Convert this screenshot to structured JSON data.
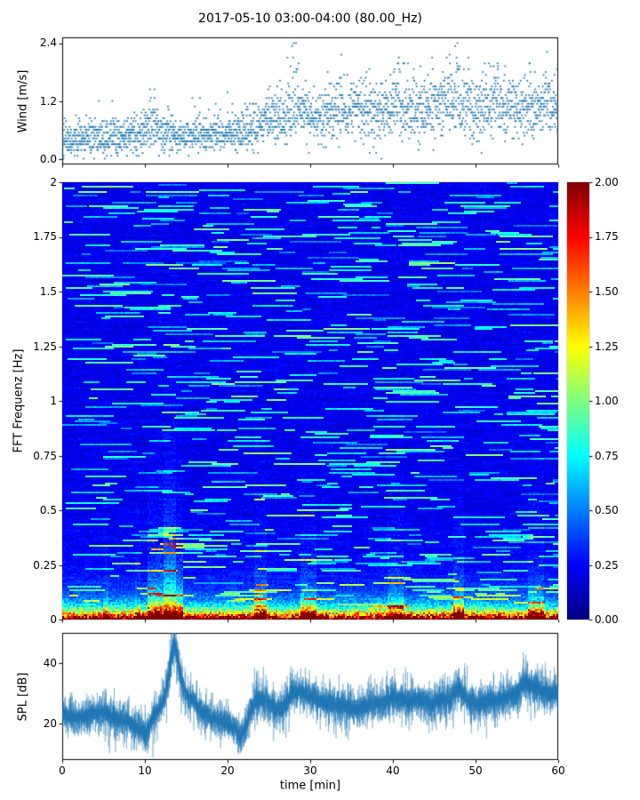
{
  "figure": {
    "title": "2017-05-10 03:00-04:00 (80.00_Hz)",
    "background": "#ffffff"
  },
  "chart_data": [
    {
      "type": "scatter",
      "name": "wind-speed",
      "ylabel": "Wind [m/s]",
      "ylim": [
        -0.12,
        2.52
      ],
      "yticks": [
        "0.0",
        "1.2",
        "2.4"
      ],
      "ytick_values": [
        0,
        1.2,
        2.4
      ],
      "xlim": [
        0,
        60
      ],
      "marker_color": "#1f77b4",
      "n_points": 2600,
      "quantize_step": 0.06,
      "seed": 42,
      "base_profile": [
        [
          0,
          0.42
        ],
        [
          3,
          0.45
        ],
        [
          6,
          0.44
        ],
        [
          9,
          0.52
        ],
        [
          11,
          0.6
        ],
        [
          13,
          0.5
        ],
        [
          15,
          0.45
        ],
        [
          18,
          0.48
        ],
        [
          20,
          0.52
        ],
        [
          22,
          0.6
        ],
        [
          24,
          0.75
        ],
        [
          26,
          0.9
        ],
        [
          28,
          1.0
        ],
        [
          29,
          0.95
        ],
        [
          30,
          0.85
        ],
        [
          32,
          0.9
        ],
        [
          34,
          1.0
        ],
        [
          36,
          1.05
        ],
        [
          38,
          1.0
        ],
        [
          40,
          1.05
        ],
        [
          42,
          1.1
        ],
        [
          44,
          1.05
        ],
        [
          46,
          1.1
        ],
        [
          48,
          1.15
        ],
        [
          50,
          1.05
        ],
        [
          52,
          1.1
        ],
        [
          54,
          1.05
        ],
        [
          56,
          1.1
        ],
        [
          58,
          1.1
        ],
        [
          60,
          1.05
        ]
      ],
      "spread_profile": [
        [
          0,
          0.18
        ],
        [
          8,
          0.2
        ],
        [
          12,
          0.22
        ],
        [
          15,
          0.16
        ],
        [
          20,
          0.2
        ],
        [
          24,
          0.26
        ],
        [
          28,
          0.34
        ],
        [
          30,
          0.3
        ],
        [
          35,
          0.3
        ],
        [
          40,
          0.32
        ],
        [
          45,
          0.32
        ],
        [
          48,
          0.36
        ],
        [
          52,
          0.3
        ],
        [
          56,
          0.3
        ],
        [
          60,
          0.3
        ]
      ],
      "gusts": [
        [
          10.8,
          0.7
        ],
        [
          16.3,
          0.6
        ],
        [
          27.6,
          1.3
        ],
        [
          28.3,
          1.0
        ],
        [
          33.5,
          0.8
        ],
        [
          40.5,
          0.9
        ],
        [
          46.6,
          1.2
        ],
        [
          47.6,
          1.3
        ],
        [
          52.5,
          0.8
        ],
        [
          58.6,
          0.9
        ]
      ]
    },
    {
      "type": "heatmap",
      "name": "fft-spectrogram",
      "ylabel": "FFT Frequenz [Hz]",
      "ylim": [
        0,
        2
      ],
      "yticks": [
        "0",
        "0.25",
        "0.5",
        "0.75",
        "1",
        "1.25",
        "1.5",
        "1.75",
        "2"
      ],
      "ytick_values": [
        0,
        0.25,
        0.5,
        0.75,
        1,
        1.25,
        1.5,
        1.75,
        2
      ],
      "xlim": [
        0,
        60
      ],
      "colormap": "jet",
      "clim": [
        0,
        2
      ],
      "colorbar_ticks": [
        "0.00",
        "0.25",
        "0.50",
        "0.75",
        "1.00",
        "1.25",
        "1.50",
        "1.75",
        "2.00"
      ],
      "colorbar_tick_values": [
        0,
        0.25,
        0.5,
        0.75,
        1,
        1.25,
        1.5,
        1.75,
        2
      ],
      "grid_nt": 279,
      "grid_nf": 246,
      "seed": 7,
      "low_freq_boost": {
        "amp1": 2.3,
        "scale1": 0.033,
        "amp2": 0.55,
        "scale2": 0.11
      },
      "bursts": [
        [
          10.3,
          14.6,
          1.9
        ],
        [
          12.2,
          13.8,
          2.4
        ],
        [
          5.0,
          5.6,
          1.3
        ],
        [
          8.8,
          9.4,
          1.3
        ],
        [
          23.3,
          24.7,
          1.6
        ],
        [
          28.8,
          30.7,
          1.6
        ],
        [
          39.4,
          41.3,
          1.5
        ],
        [
          47.4,
          48.7,
          1.6
        ],
        [
          56.4,
          58.3,
          1.5
        ]
      ]
    },
    {
      "type": "line",
      "name": "spl-timeseries",
      "ylabel": "SPL [dB]",
      "xlabel": "time [min]",
      "ylim": [
        8,
        50
      ],
      "yticks": [
        "20",
        "40"
      ],
      "ytick_values": [
        20,
        40
      ],
      "xlim": [
        0,
        60
      ],
      "xticks": [
        "0",
        "10",
        "20",
        "30",
        "40",
        "50",
        "60"
      ],
      "xtick_values": [
        0,
        10,
        20,
        30,
        40,
        50,
        60
      ],
      "color": "#1f77b4",
      "n_samples": 6000,
      "seed": 13,
      "base_profile": [
        [
          0,
          23
        ],
        [
          2,
          22
        ],
        [
          4,
          23.5
        ],
        [
          5,
          24
        ],
        [
          6,
          22
        ],
        [
          8,
          21
        ],
        [
          9,
          18.5
        ],
        [
          10,
          17
        ],
        [
          10.5,
          19
        ],
        [
          11,
          22
        ],
        [
          12,
          26
        ],
        [
          12.5,
          30
        ],
        [
          13,
          38
        ],
        [
          13.3,
          44
        ],
        [
          13.6,
          46
        ],
        [
          14,
          41
        ],
        [
          14.5,
          34
        ],
        [
          15,
          30
        ],
        [
          16,
          27
        ],
        [
          17,
          23.5
        ],
        [
          18,
          22
        ],
        [
          19,
          21
        ],
        [
          20,
          20
        ],
        [
          21,
          18
        ],
        [
          21.5,
          16
        ],
        [
          22,
          17.5
        ],
        [
          22.5,
          21
        ],
        [
          23,
          26
        ],
        [
          23.5,
          28
        ],
        [
          24.5,
          28
        ],
        [
          25.5,
          25.5
        ],
        [
          26.5,
          24.5
        ],
        [
          27.5,
          29
        ],
        [
          28,
          31
        ],
        [
          29,
          30.5
        ],
        [
          30,
          29
        ],
        [
          31,
          27.5
        ],
        [
          32,
          27
        ],
        [
          33,
          26
        ],
        [
          34,
          26
        ],
        [
          35,
          25
        ],
        [
          36,
          25.5
        ],
        [
          37,
          26
        ],
        [
          38,
          27
        ],
        [
          39,
          27
        ],
        [
          40,
          29.5
        ],
        [
          41,
          28
        ],
        [
          42,
          27
        ],
        [
          43,
          28
        ],
        [
          44,
          27
        ],
        [
          45,
          27
        ],
        [
          46,
          28
        ],
        [
          47,
          28
        ],
        [
          47.5,
          30
        ],
        [
          48,
          32
        ],
        [
          48.5,
          30
        ],
        [
          49,
          28
        ],
        [
          50,
          26.5
        ],
        [
          51,
          27
        ],
        [
          52,
          28
        ],
        [
          53,
          28
        ],
        [
          54,
          29
        ],
        [
          55,
          30
        ],
        [
          55.5,
          32
        ],
        [
          56,
          34
        ],
        [
          56.5,
          33
        ],
        [
          57,
          32
        ],
        [
          58,
          31
        ],
        [
          59,
          30
        ],
        [
          60,
          30
        ]
      ],
      "spread_profile": [
        [
          0,
          3
        ],
        [
          9,
          3.2
        ],
        [
          12,
          3
        ],
        [
          13,
          4
        ],
        [
          15,
          3
        ],
        [
          20,
          3
        ],
        [
          23,
          3.5
        ],
        [
          30,
          3.5
        ],
        [
          40,
          3.5
        ],
        [
          50,
          3.5
        ],
        [
          60,
          3.5
        ]
      ]
    }
  ]
}
